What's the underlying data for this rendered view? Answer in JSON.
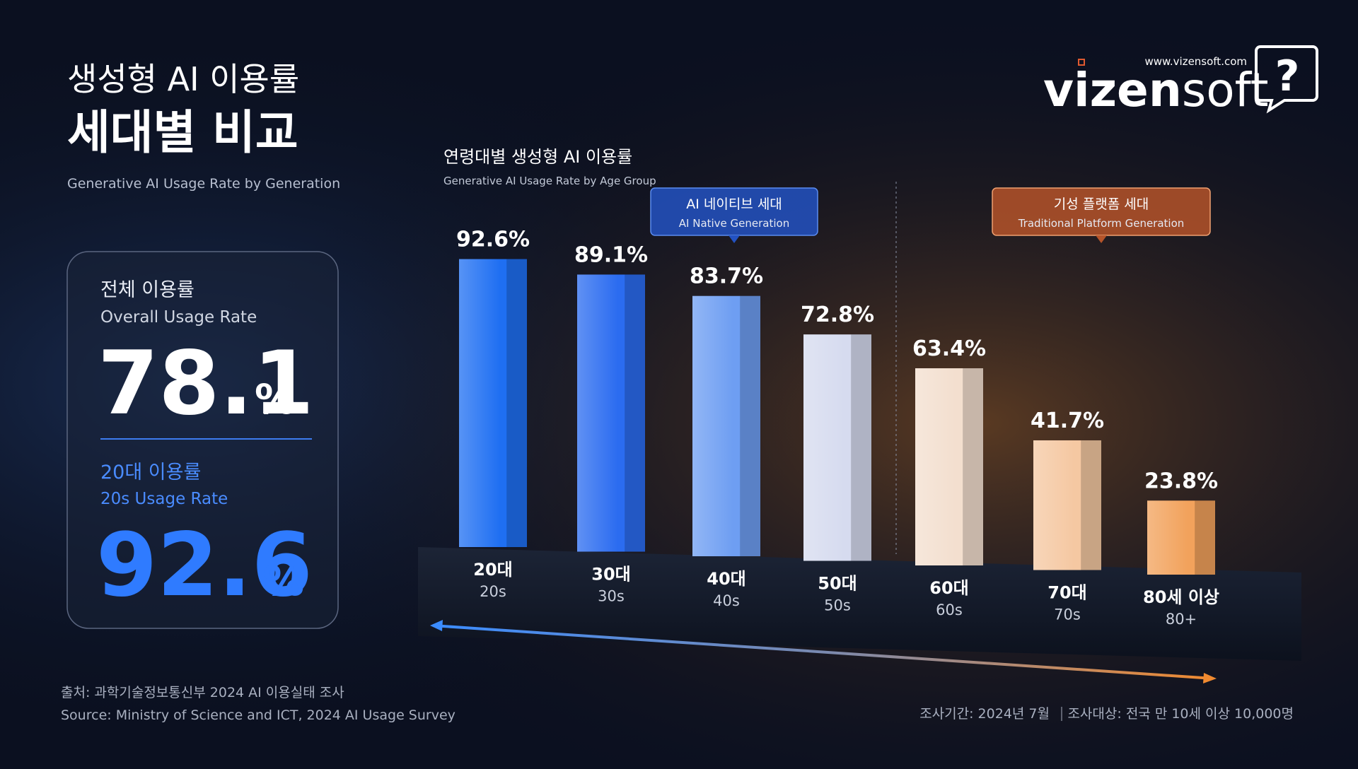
{
  "header": {
    "title": "생성형 AI 이용률",
    "title_bold": "세대별 비교",
    "subtitle": "Generative AI Usage Rate by Generation"
  },
  "brand": {
    "url": "www.vizensoft.com",
    "name_a": "vizen",
    "name_b": "soft",
    "icon": "?"
  },
  "summary": [
    {
      "label": "전체 이용률",
      "label_en": "Overall Usage Rate",
      "value": "78.1",
      "unit": "%"
    },
    {
      "label": "20대 이용률",
      "label_en": "20s Usage Rate",
      "value": "92.6",
      "unit": "%"
    }
  ],
  "chart_data": {
    "type": "bar",
    "title": "연령대별 생성형 AI 이용률",
    "subtitle": "Generative AI Usage Rate by Age Group",
    "categories": [
      "20대",
      "30대",
      "40대",
      "50대",
      "60대",
      "70대",
      "80세 이상"
    ],
    "categories_en": [
      "20s",
      "30s",
      "40s",
      "50s",
      "60s",
      "70s",
      "80+"
    ],
    "values": [
      92.6,
      89.1,
      83.7,
      72.8,
      63.4,
      41.7,
      23.8
    ],
    "value_labels": [
      "92.6%",
      "89.1%",
      "83.7%",
      "72.8%",
      "63.4%",
      "41.7%",
      "23.8%"
    ],
    "colors": [
      "#1f6ff2",
      "#2b6cf0",
      "#6e9ef2",
      "#d6dbef",
      "#f3dfcf",
      "#f5c8a2",
      "#f2a25c"
    ],
    "groups": [
      {
        "name": "AI 네이티브 세대",
        "name_en": "AI Native Generation",
        "color": "#2352c2"
      },
      {
        "name": "기성 플랫폼 세대",
        "name_en": "Traditional Platform Generation",
        "color": "#b5542a"
      }
    ]
  },
  "footer": {
    "source_ko": "출처: 과학기술정보통신부 2024 AI 이용실태 조사",
    "source_en": "Source: Ministry of Science and ICT, 2024 AI Usage Survey",
    "period": "조사기간: 2024년 7월",
    "target": "조사대상: 전국 만 10세 이상 10,000명"
  }
}
